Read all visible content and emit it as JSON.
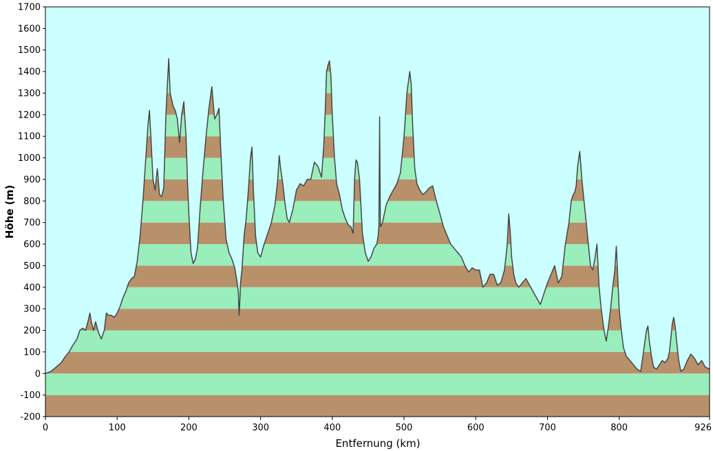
{
  "chart_data": {
    "type": "area",
    "xlabel": "Entfernung   (km)",
    "ylabel": "Höhe (m)",
    "xlim": [
      0,
      926
    ],
    "ylim": [
      -200,
      1700
    ],
    "x_ticks": [
      "0",
      "100",
      "200",
      "300",
      "400",
      "500",
      "600",
      "700",
      "800",
      "926"
    ],
    "x_tick_values": [
      0,
      100,
      200,
      300,
      400,
      500,
      600,
      700,
      800,
      926
    ],
    "y_ticks": [
      "-200",
      "-100",
      "0",
      "100",
      "200",
      "300",
      "400",
      "500",
      "600",
      "700",
      "800",
      "900",
      "1000",
      "1100",
      "1200",
      "1300",
      "1400",
      "1500",
      "1600",
      "1700"
    ],
    "y_tick_values": [
      -200,
      -100,
      0,
      100,
      200,
      300,
      400,
      500,
      600,
      700,
      800,
      900,
      1000,
      1100,
      1200,
      1300,
      1400,
      1500,
      1600,
      1700
    ],
    "band_interval": 100,
    "colors": {
      "sky": "#ccffff",
      "band_green": "#99eebb",
      "band_brown": "#b8916a",
      "profile_line": "#444444"
    },
    "series": [
      {
        "x": [
          0,
          8,
          15,
          22,
          28,
          33,
          38,
          44,
          48,
          52,
          56,
          60,
          62,
          64,
          67,
          70,
          74,
          78,
          82,
          85,
          88,
          92,
          96,
          100,
          104,
          108,
          112,
          116,
          120,
          124,
          128,
          132,
          136,
          140,
          143,
          145,
          147,
          150,
          153,
          156,
          159,
          162,
          165,
          168,
          170,
          172,
          174,
          176,
          178,
          181,
          184,
          187,
          190,
          193,
          196,
          198,
          200,
          203,
          206,
          209,
          212,
          216,
          220,
          224,
          228,
          232,
          234,
          236,
          239,
          242,
          245,
          248,
          252,
          256,
          260,
          264,
          267,
          269,
          270,
          271,
          272,
          273,
          274,
          277,
          280,
          283,
          286,
          288,
          290,
          293,
          296,
          300,
          305,
          310,
          315,
          320,
          324,
          326,
          328,
          331,
          334,
          337,
          340,
          345,
          350,
          355,
          360,
          365,
          370,
          375,
          380,
          385,
          388,
          390,
          392,
          394,
          396,
          398,
          400,
          403,
          406,
          410,
          414,
          418,
          422,
          426,
          429,
          431,
          433,
          435,
          438,
          442,
          446,
          450,
          454,
          458,
          462,
          464,
          465,
          466,
          467,
          470,
          475,
          480,
          485,
          490,
          495,
          500,
          504,
          506,
          508,
          510,
          512,
          515,
          518,
          522,
          526,
          530,
          535,
          540,
          545,
          550,
          555,
          560,
          565,
          570,
          575,
          580,
          585,
          590,
          595,
          600,
          605,
          610,
          615,
          620,
          625,
          630,
          635,
          640,
          644,
          646,
          648,
          650,
          653,
          656,
          660,
          665,
          670,
          675,
          680,
          685,
          690,
          695,
          700,
          705,
          710,
          715,
          720,
          725,
          730,
          733,
          736,
          738,
          740,
          742,
          745,
          748,
          751,
          754,
          757,
          760,
          763,
          766,
          769,
          772,
          775,
          778,
          780,
          782,
          785,
          788,
          791,
          794,
          796,
          798,
          800,
          803,
          806,
          810,
          815,
          820,
          825,
          830,
          833,
          836,
          838,
          840,
          842,
          845,
          848,
          852,
          856,
          860,
          864,
          868,
          870,
          872,
          874,
          876,
          878,
          880,
          883,
          886,
          890,
          895,
          900,
          905,
          910,
          915,
          920,
          926
        ],
        "y": [
          0,
          10,
          30,
          50,
          80,
          100,
          130,
          160,
          200,
          210,
          200,
          250,
          280,
          240,
          200,
          240,
          190,
          160,
          200,
          280,
          270,
          270,
          260,
          280,
          310,
          350,
          380,
          420,
          440,
          450,
          520,
          640,
          800,
          1000,
          1150,
          1220,
          1100,
          900,
          850,
          950,
          830,
          820,
          860,
          1200,
          1340,
          1460,
          1300,
          1270,
          1240,
          1220,
          1180,
          1070,
          1200,
          1260,
          1100,
          900,
          740,
          560,
          510,
          530,
          580,
          780,
          950,
          1100,
          1230,
          1330,
          1250,
          1180,
          1200,
          1230,
          1000,
          800,
          620,
          560,
          530,
          490,
          430,
          380,
          270,
          330,
          420,
          450,
          480,
          640,
          720,
          850,
          1000,
          1050,
          850,
          640,
          560,
          540,
          600,
          650,
          700,
          780,
          900,
          1010,
          950,
          880,
          790,
          720,
          700,
          760,
          850,
          880,
          870,
          900,
          900,
          980,
          960,
          910,
          1050,
          1200,
          1400,
          1430,
          1450,
          1380,
          1200,
          1000,
          880,
          830,
          760,
          720,
          690,
          680,
          650,
          900,
          990,
          980,
          900,
          650,
          560,
          520,
          540,
          580,
          600,
          640,
          690,
          1190,
          680,
          700,
          780,
          820,
          850,
          880,
          930,
          1100,
          1300,
          1350,
          1400,
          1340,
          1150,
          950,
          880,
          850,
          830,
          840,
          860,
          870,
          800,
          740,
          680,
          640,
          600,
          580,
          560,
          540,
          500,
          470,
          490,
          480,
          480,
          400,
          420,
          460,
          460,
          410,
          420,
          480,
          600,
          740,
          660,
          540,
          460,
          420,
          400,
          420,
          440,
          410,
          380,
          350,
          320,
          370,
          420,
          460,
          500,
          420,
          450,
          600,
          700,
          800,
          830,
          840,
          870,
          960,
          1030,
          900,
          800,
          700,
          600,
          500,
          480,
          530,
          600,
          400,
          300,
          220,
          180,
          150,
          220,
          300,
          400,
          480,
          590,
          450,
          300,
          200,
          120,
          80,
          60,
          40,
          20,
          10,
          80,
          150,
          200,
          220,
          150,
          80,
          30,
          20,
          40,
          60,
          50,
          70,
          100,
          160,
          230,
          260,
          220,
          150,
          60,
          10,
          20,
          60,
          90,
          70,
          40,
          60,
          30,
          20
        ]
      }
    ]
  }
}
